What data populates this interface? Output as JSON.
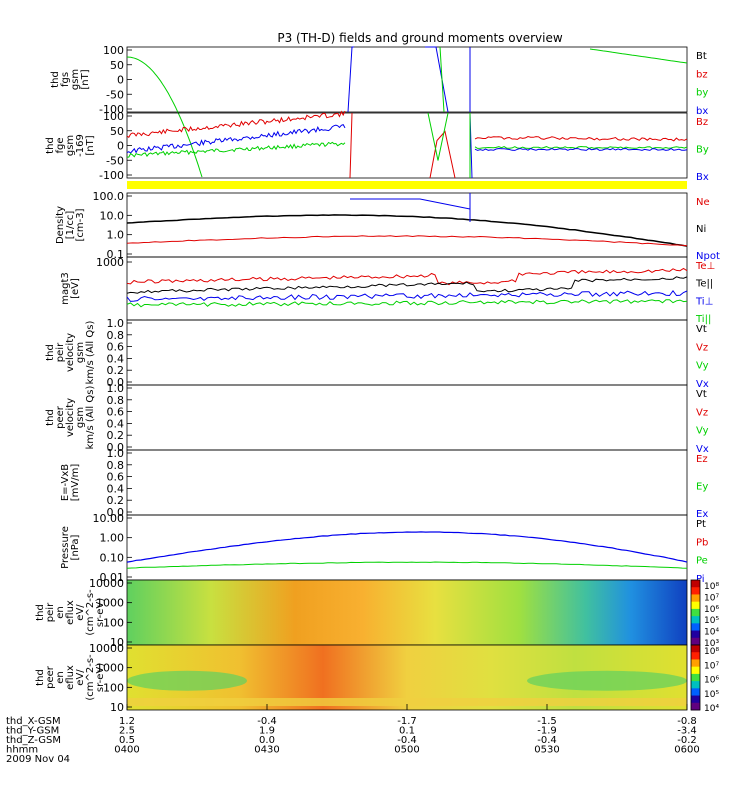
{
  "title": "P3 (TH-D) fields and ground moments overview",
  "date_label": "2009 Nov 04",
  "x_axis": {
    "rows": [
      {
        "name": "thd_X-GSM",
        "values": [
          "1.2",
          "-0.4",
          "-1.7",
          "-1.5",
          "-0.8"
        ]
      },
      {
        "name": "thd_Y-GSM",
        "values": [
          "2.5",
          "1.9",
          "0.1",
          "-1.9",
          "-3.4"
        ]
      },
      {
        "name": "thd_Z-GSM",
        "values": [
          "0.5",
          "0.0",
          "-0.4",
          "-0.4",
          "-0.2"
        ]
      },
      {
        "name": "hhmm",
        "values": [
          "0400",
          "0430",
          "0500",
          "0530",
          "0600"
        ]
      }
    ]
  },
  "colors": {
    "red": "#e00000",
    "green": "#00d000",
    "blue": "#0000ee",
    "black": "#000000",
    "yellow": "#ffff00"
  },
  "panels": [
    {
      "id": "fgs",
      "ylabel": [
        "thd",
        "fgs",
        "gsm",
        "[nT]"
      ],
      "ticks": [
        "100",
        "50",
        "0",
        "-50",
        "-100"
      ],
      "legend": [
        {
          "label": "Bt",
          "color": "#000000"
        },
        {
          "label": "bz",
          "color": "#e00000"
        },
        {
          "label": "by",
          "color": "#00d000"
        },
        {
          "label": "bx",
          "color": "#0000ee"
        }
      ]
    },
    {
      "id": "fge",
      "ylabel": [
        "thd",
        "fge",
        "gsm",
        "-169",
        "[nT]"
      ],
      "ticks": [
        "100",
        "50",
        "0",
        "-50",
        "-100"
      ],
      "legend": [
        {
          "label": "Bz",
          "color": "#e00000"
        },
        {
          "label": "By",
          "color": "#00d000"
        },
        {
          "label": "Bx",
          "color": "#0000ee"
        }
      ]
    },
    {
      "id": "density",
      "ylabel": [
        "Density",
        "[1/cc]",
        "[cm-3]"
      ],
      "ticks": [
        "100.0",
        "10.0",
        "1.0",
        "0.1"
      ],
      "legend": [
        {
          "label": "Ne",
          "color": "#e00000"
        },
        {
          "label": "Ni",
          "color": "#000000"
        },
        {
          "label": "Npot",
          "color": "#0000ee"
        }
      ]
    },
    {
      "id": "temp",
      "ylabel": [
        "magt3",
        "[eV]"
      ],
      "ticks": [
        "1000"
      ],
      "legend": [
        {
          "label": "Te⊥",
          "color": "#e00000"
        },
        {
          "label": "Te||",
          "color": "#000000"
        },
        {
          "label": "Ti⊥",
          "color": "#0000ee"
        },
        {
          "label": "Ti||",
          "color": "#00d000"
        }
      ]
    },
    {
      "id": "peir_vel",
      "ylabel": [
        "thd",
        "peir",
        "velocity",
        "gsm",
        "km/s (All Qs)"
      ],
      "ticks": [
        "1.0",
        "0.8",
        "0.6",
        "0.4",
        "0.2",
        "0.0"
      ],
      "legend": [
        {
          "label": "Vt",
          "color": "#000000"
        },
        {
          "label": "Vz",
          "color": "#e00000"
        },
        {
          "label": "Vy",
          "color": "#00d000"
        },
        {
          "label": "Vx",
          "color": "#0000ee"
        }
      ]
    },
    {
      "id": "peer_vel",
      "ylabel": [
        "thd",
        "peer",
        "velocity",
        "gsm",
        "km/s (All Qs)"
      ],
      "ticks": [
        "1.0",
        "0.8",
        "0.6",
        "0.4",
        "0.2",
        "0.0"
      ],
      "legend": [
        {
          "label": "Vt",
          "color": "#000000"
        },
        {
          "label": "Vz",
          "color": "#e00000"
        },
        {
          "label": "Vy",
          "color": "#00d000"
        },
        {
          "label": "Vx",
          "color": "#0000ee"
        }
      ]
    },
    {
      "id": "efield",
      "ylabel": [
        "E=-VxB",
        "[mV/m]"
      ],
      "ticks": [
        "1.0",
        "0.8",
        "0.6",
        "0.4",
        "0.2",
        "0.0"
      ],
      "legend": [
        {
          "label": "Ez",
          "color": "#e00000"
        },
        {
          "label": "Ey",
          "color": "#00d000"
        },
        {
          "label": "Ex",
          "color": "#0000ee"
        }
      ]
    },
    {
      "id": "pressure",
      "ylabel": [
        "Pressure",
        "[nPa]"
      ],
      "ticks": [
        "10.00",
        "1.00",
        "0.10",
        "0.01"
      ],
      "legend": [
        {
          "label": "Pt",
          "color": "#000000"
        },
        {
          "label": "Pb",
          "color": "#e00000"
        },
        {
          "label": "Pe",
          "color": "#00d000"
        },
        {
          "label": "Pi",
          "color": "#0000ee"
        }
      ]
    },
    {
      "id": "peir_eflux",
      "ylabel": [
        "thd",
        "peir",
        "en",
        "eflux",
        "eV/",
        "(cm^2-s-",
        "sr-eV)"
      ],
      "ticks": [
        "10000",
        "1000",
        "100",
        "10"
      ],
      "colorbar": [
        "10⁸",
        "10⁷",
        "10⁶",
        "10⁵",
        "10⁴",
        "10³"
      ]
    },
    {
      "id": "peer_eflux",
      "ylabel": [
        "thd",
        "peer",
        "en",
        "eflux",
        "eV/",
        "(cm^2-s-",
        "sr-eV)"
      ],
      "ticks": [
        "10000",
        "1000",
        "100",
        "10"
      ],
      "colorbar": [
        "10⁸",
        "10⁷",
        "10⁶",
        "10⁵",
        "10⁴"
      ]
    }
  ],
  "chart_data": {
    "type": "line",
    "x_label": "hhmm",
    "x_categories": [
      "0400",
      "0430",
      "0500",
      "0530",
      "0600"
    ],
    "series": [
      {
        "name": "Ni",
        "panel": "density",
        "color": "#000000",
        "x": [
          0,
          0.25,
          0.35,
          0.55,
          0.75,
          1.0
        ],
        "y": [
          2,
          30,
          55,
          12,
          3,
          0.15
        ]
      },
      {
        "name": "Ne",
        "panel": "density",
        "color": "#e00000",
        "x": [
          0,
          0.2,
          0.35,
          0.5,
          0.6,
          0.8,
          1.0
        ],
        "y": [
          0.25,
          0.6,
          1.2,
          0.8,
          0.3,
          0.2,
          0.15
        ]
      },
      {
        "name": "Te⊥",
        "panel": "temp",
        "color": "#e00000",
        "x": [
          0,
          0.3,
          0.55,
          0.62,
          0.75,
          1.0
        ],
        "y": [
          0.75,
          0.8,
          0.95,
          0.62,
          0.6,
          0.78
        ]
      },
      {
        "name": "Pi",
        "panel": "pressure",
        "color": "#0000ee",
        "x": [
          0,
          0.2,
          0.35,
          0.5,
          0.75,
          0.9,
          1.0
        ],
        "y": [
          0.08,
          0.6,
          1.8,
          1.3,
          0.3,
          0.03,
          0.01
        ]
      },
      {
        "name": "Pe",
        "panel": "pressure",
        "color": "#00d000",
        "x": [
          0,
          0.35,
          0.55,
          0.75,
          1.0
        ],
        "y": [
          0.02,
          0.1,
          0.05,
          0.02,
          0.015
        ]
      }
    ]
  }
}
